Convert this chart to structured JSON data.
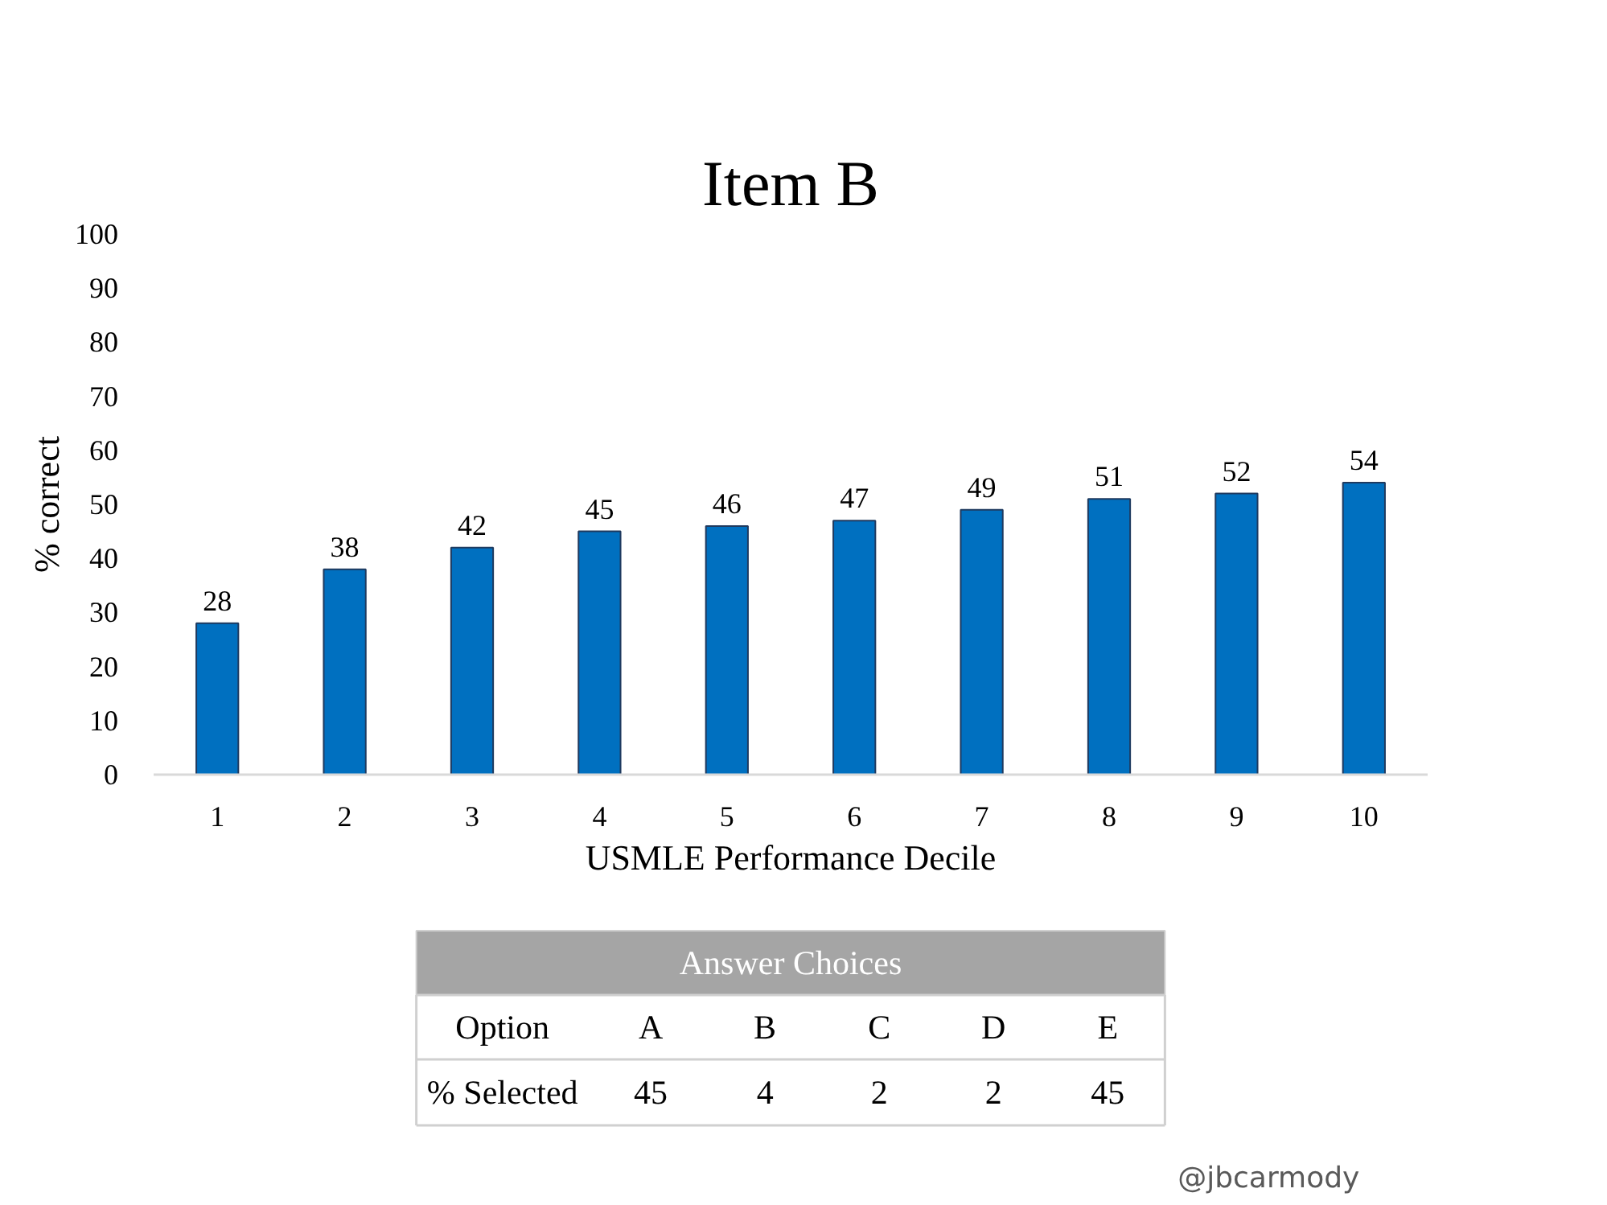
{
  "chart_data": [
    {
      "type": "bar",
      "title": "Item B",
      "xlabel": "USMLE Performance Decile",
      "ylabel": "% correct",
      "categories": [
        "1",
        "2",
        "3",
        "4",
        "5",
        "6",
        "7",
        "8",
        "9",
        "10"
      ],
      "values": [
        28,
        38,
        42,
        45,
        46,
        47,
        49,
        51,
        52,
        54
      ],
      "color": "#0070c0",
      "ylim": [
        0,
        100
      ],
      "yticks": [
        0,
        10,
        20,
        30,
        40,
        50,
        60,
        70,
        80,
        90,
        100
      ],
      "data_labels": true
    },
    {
      "type": "other",
      "title": "Answer Choices",
      "xlabel": "Option",
      "ylabel": "% Selected",
      "categories": [
        "A",
        "B",
        "C",
        "D",
        "E"
      ],
      "values": [
        45,
        4,
        2,
        2,
        45
      ],
      "data_labels": true,
      "annotations": [
        "@jbcarmody"
      ]
    }
  ]
}
